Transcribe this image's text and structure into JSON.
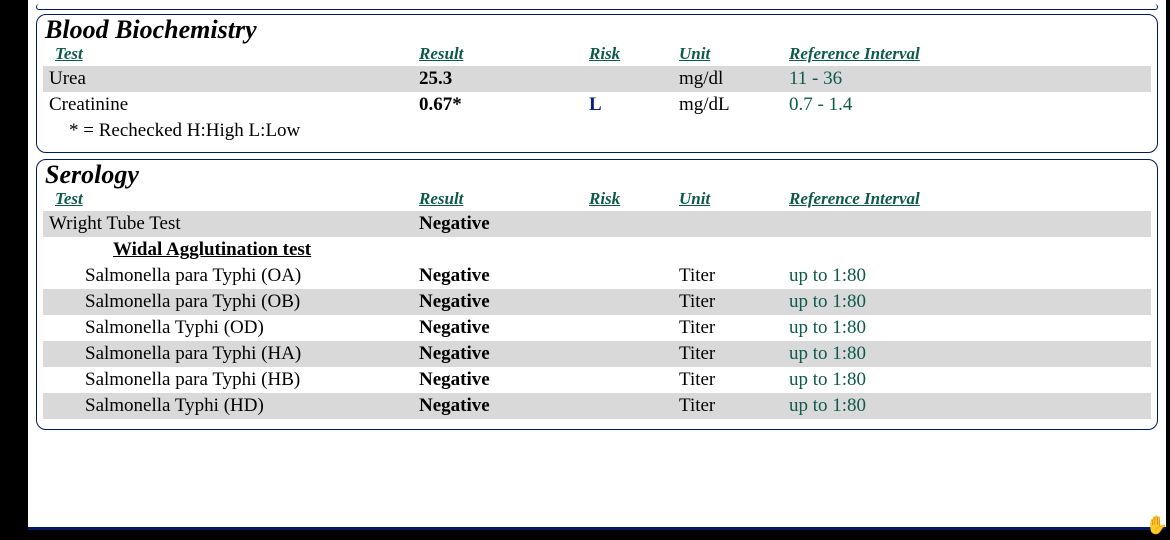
{
  "headers": {
    "test": "Test",
    "result": "Result",
    "risk": "Risk",
    "unit": "Unit",
    "ref": "Reference Interval"
  },
  "biochem": {
    "title": "Blood Biochemistry",
    "rows": [
      {
        "test": "Urea",
        "result": "25.3",
        "risk": "",
        "unit": "mg/dl",
        "ref": "11 - 36",
        "shade": true,
        "sub": false
      },
      {
        "test": "Creatinine",
        "result": "0.67*",
        "risk": "L",
        "unit": "mg/dL",
        "ref": "0.7 - 1.4",
        "shade": false,
        "sub": false
      }
    ],
    "footnote": "* = Rechecked H:High L:Low"
  },
  "serology": {
    "title": "Serology",
    "subhead": "Widal Agglutination test",
    "rows_top": [
      {
        "test": "Wright Tube Test",
        "result": "Negative",
        "risk": "",
        "unit": "",
        "ref": "",
        "shade": true,
        "sub": false
      }
    ],
    "rows": [
      {
        "test": "Salmonella para Typhi (OA)",
        "result": "Negative",
        "risk": "",
        "unit": "Titer",
        "ref": "up to 1:80",
        "shade": false,
        "sub": true
      },
      {
        "test": "Salmonella para Typhi (OB)",
        "result": "Negative",
        "risk": "",
        "unit": "Titer",
        "ref": "up to 1:80",
        "shade": true,
        "sub": true
      },
      {
        "test": "Salmonella Typhi (OD)",
        "result": "Negative",
        "risk": "",
        "unit": "Titer",
        "ref": "up to 1:80",
        "shade": false,
        "sub": true
      },
      {
        "test": "Salmonella para Typhi (HA)",
        "result": "Negative",
        "risk": "",
        "unit": "Titer",
        "ref": "up to 1:80",
        "shade": true,
        "sub": true
      },
      {
        "test": "Salmonella para Typhi (HB)",
        "result": "Negative",
        "risk": "",
        "unit": "Titer",
        "ref": "up to 1:80",
        "shade": false,
        "sub": true
      },
      {
        "test": "Salmonella Typhi (HD)",
        "result": "Negative",
        "risk": "",
        "unit": "Titer",
        "ref": "up to 1:80",
        "shade": true,
        "sub": true
      }
    ]
  }
}
